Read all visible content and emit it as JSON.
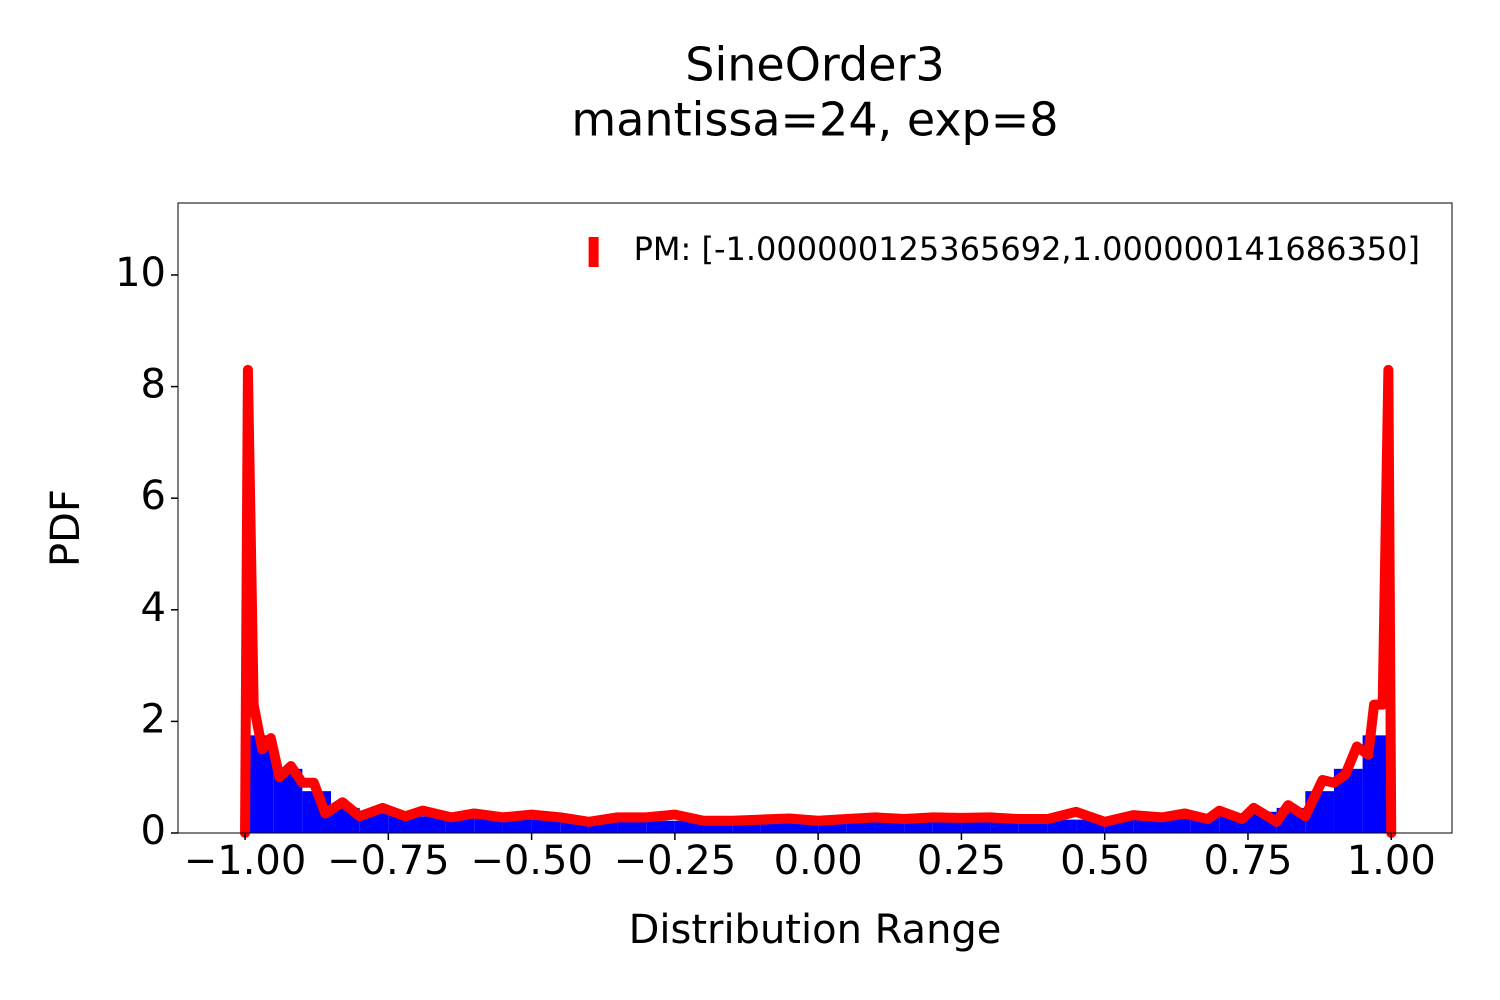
{
  "chart_data": {
    "type": "histogram",
    "title": "SineOrder3",
    "subtitle": "mantissa=24, exp=8",
    "x_label": "Distribution Range",
    "y_label": "PDF",
    "bins": [
      -1,
      -0.95,
      -0.9,
      -0.85,
      -0.8,
      -0.75,
      -0.7,
      -0.65,
      -0.6,
      -0.55,
      -0.5,
      -0.45,
      -0.4,
      -0.35,
      -0.3,
      -0.25,
      -0.2,
      -0.15,
      -0.1,
      -0.05,
      0,
      0.05,
      0.1,
      0.15,
      0.2,
      0.25,
      0.3,
      0.35,
      0.4,
      0.45,
      0.5,
      0.55,
      0.6,
      0.65,
      0.7,
      0.75,
      0.8,
      0.85,
      0.9,
      0.95,
      1
    ],
    "values": [
      1.75,
      1.15,
      0.75,
      0.45,
      0.38,
      0.33,
      0.3,
      0.28,
      0.26,
      0.25,
      0.24,
      0.24,
      0.23,
      0.23,
      0.22,
      0.22,
      0.22,
      0.21,
      0.21,
      0.25,
      0.22,
      0.21,
      0.21,
      0.22,
      0.22,
      0.22,
      0.23,
      0.23,
      0.24,
      0.24,
      0.25,
      0.26,
      0.28,
      0.3,
      0.33,
      0.38,
      0.45,
      0.75,
      1.15,
      1.75
    ],
    "color": "#0000ff",
    "series": [
      {
        "name": "PM: [-1.000000125365692,1.000000141686350]",
        "color": "#ff0000",
        "x": [
          -1.0,
          -0.995,
          -0.985,
          -0.97,
          -0.955,
          -0.94,
          -0.92,
          -0.9,
          -0.88,
          -0.86,
          -0.83,
          -0.8,
          -0.76,
          -0.72,
          -0.69,
          -0.64,
          -0.6,
          -0.55,
          -0.5,
          -0.45,
          -0.4,
          -0.35,
          -0.3,
          -0.25,
          -0.2,
          -0.15,
          -0.1,
          -0.05,
          0,
          0.05,
          0.1,
          0.15,
          0.2,
          0.25,
          0.3,
          0.35,
          0.4,
          0.45,
          0.5,
          0.55,
          0.6,
          0.64,
          0.68,
          0.7,
          0.74,
          0.76,
          0.8,
          0.82,
          0.85,
          0.88,
          0.9,
          0.92,
          0.94,
          0.96,
          0.97,
          0.985,
          0.995,
          1.0
        ],
        "values": [
          0,
          8.3,
          2.3,
          1.5,
          1.7,
          1.0,
          1.2,
          0.9,
          0.9,
          0.35,
          0.55,
          0.3,
          0.45,
          0.3,
          0.4,
          0.28,
          0.35,
          0.28,
          0.33,
          0.28,
          0.2,
          0.28,
          0.28,
          0.33,
          0.22,
          0.22,
          0.24,
          0.26,
          0.22,
          0.25,
          0.28,
          0.25,
          0.28,
          0.27,
          0.28,
          0.25,
          0.25,
          0.38,
          0.2,
          0.32,
          0.28,
          0.35,
          0.25,
          0.4,
          0.25,
          0.45,
          0.2,
          0.5,
          0.3,
          0.95,
          0.9,
          1.05,
          1.55,
          1.4,
          2.3,
          2.3,
          8.3,
          0
        ]
      }
    ],
    "xlim": [
      -1.117,
      1.106
    ],
    "ylim": [
      0,
      11.29
    ],
    "xticks": [
      {
        "value": -1,
        "label": "−1.00"
      },
      {
        "value": -0.75,
        "label": "−0.75"
      },
      {
        "value": -0.5,
        "label": "−0.50"
      },
      {
        "value": -0.25,
        "label": "−0.25"
      },
      {
        "value": 0,
        "label": "0.00"
      },
      {
        "value": 0.25,
        "label": "0.25"
      },
      {
        "value": 0.5,
        "label": "0.50"
      },
      {
        "value": 0.75,
        "label": "0.75"
      },
      {
        "value": 1,
        "label": "1.00"
      }
    ],
    "yticks": [
      0,
      2,
      4,
      6,
      8,
      10
    ],
    "legend": "upper right",
    "grid": false
  }
}
